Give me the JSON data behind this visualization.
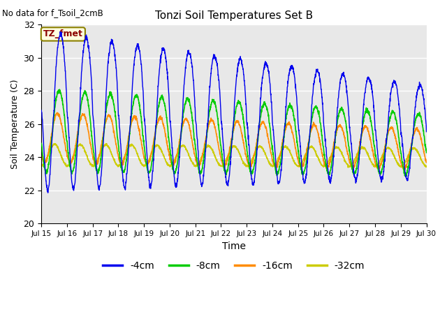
{
  "title": "Tonzi Soil Temperatures Set B",
  "xlabel": "Time",
  "ylabel": "Soil Temperature (C)",
  "no_data_text": "No data for f_Tsoil_2cmB",
  "tz_fmet_label": "TZ_fmet",
  "ylim": [
    20,
    32
  ],
  "yticks": [
    20,
    22,
    24,
    26,
    28,
    30,
    32
  ],
  "xtick_labels": [
    "Jul 15",
    "Jul 16",
    "Jul 17",
    "Jul 18",
    "Jul 19",
    "Jul 20",
    "Jul 21",
    "Jul 22",
    "Jul 23",
    "Jul 24",
    "Jul 25",
    "Jul 26",
    "Jul 27",
    "Jul 28",
    "Jul 29",
    "Jul 30"
  ],
  "colors": {
    "4cm": "#0000EE",
    "8cm": "#00CC00",
    "16cm": "#FF8C00",
    "32cm": "#CCCC00"
  },
  "legend_labels": [
    "-4cm",
    "-8cm",
    "-16cm",
    "-32cm"
  ],
  "plot_bg_color": "#E8E8E8",
  "fig_bg_color": "#FFFFFF",
  "grid_color": "#FFFFFF"
}
